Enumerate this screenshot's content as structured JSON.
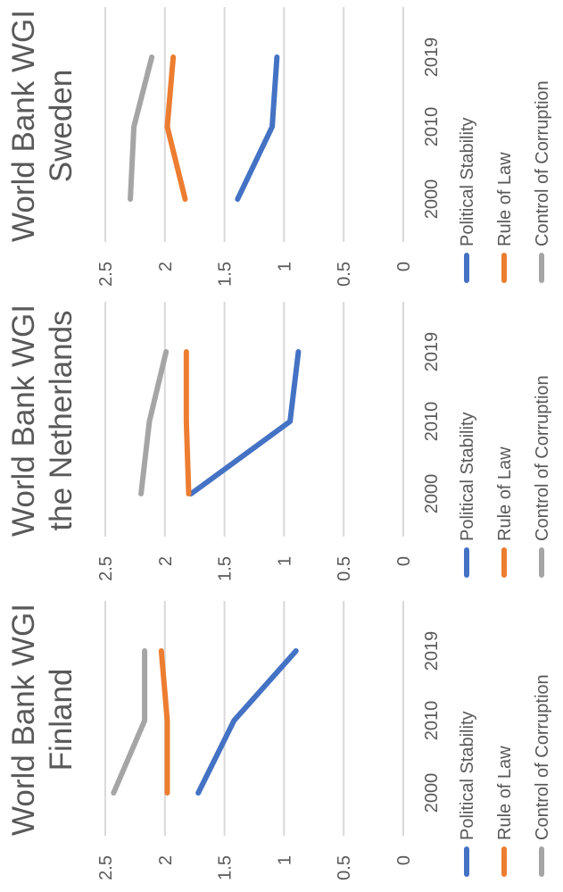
{
  "chart_data": [
    {
      "type": "line",
      "title": [
        "World Bank WGI",
        "Finland"
      ],
      "categories": [
        "2000",
        "2010",
        "2019"
      ],
      "ylim": [
        0,
        2.5
      ],
      "yticks": [
        "0",
        "0.5",
        "1",
        "1.5",
        "2",
        "2.5"
      ],
      "grid": true,
      "legend_position": "bottom",
      "series": [
        {
          "name": "Political Stability",
          "color": "#4472c4",
          "values": [
            1.72,
            1.42,
            0.9
          ]
        },
        {
          "name": "Rule of Law",
          "color": "#ed7d31",
          "values": [
            1.98,
            1.98,
            2.03
          ]
        },
        {
          "name": "Control of Corruption",
          "color": "#a5a5a5",
          "values": [
            2.43,
            2.17,
            2.17
          ]
        }
      ]
    },
    {
      "type": "line",
      "title": [
        "World Bank WGI",
        "the Netherlands"
      ],
      "categories": [
        "2000",
        "2010",
        "2019"
      ],
      "ylim": [
        0,
        2.5
      ],
      "yticks": [
        "0",
        "0.5",
        "1",
        "1.5",
        "2",
        "2.5"
      ],
      "grid": true,
      "legend_position": "bottom",
      "series": [
        {
          "name": "Political Stability",
          "color": "#4472c4",
          "values": [
            1.78,
            0.95,
            0.88
          ]
        },
        {
          "name": "Rule of Law",
          "color": "#ed7d31",
          "values": [
            1.8,
            1.82,
            1.82
          ]
        },
        {
          "name": "Control of Corruption",
          "color": "#a5a5a5",
          "values": [
            2.2,
            2.13,
            1.99
          ]
        }
      ]
    },
    {
      "type": "line",
      "title": [
        "World Bank WGI",
        "Sweden"
      ],
      "categories": [
        "2000",
        "2010",
        "2019"
      ],
      "ylim": [
        0,
        2.5
      ],
      "yticks": [
        "0",
        "0.5",
        "1",
        "1.5",
        "2",
        "2.5"
      ],
      "grid": true,
      "legend_position": "bottom",
      "series": [
        {
          "name": "Political Stability",
          "color": "#4472c4",
          "values": [
            1.39,
            1.1,
            1.06
          ]
        },
        {
          "name": "Rule of Law",
          "color": "#ed7d31",
          "values": [
            1.83,
            1.98,
            1.93
          ]
        },
        {
          "name": "Control of Corruption",
          "color": "#a5a5a5",
          "values": [
            2.29,
            2.26,
            2.11
          ]
        }
      ]
    }
  ]
}
